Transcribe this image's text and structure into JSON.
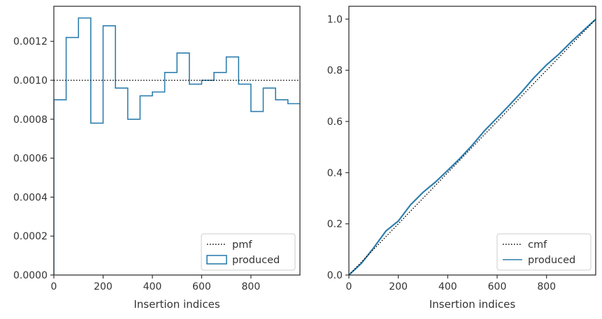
{
  "chart_data": [
    {
      "type": "histogram-step",
      "xlabel": "Insertion indices",
      "ylabel": "",
      "xlim": [
        0,
        999
      ],
      "ylim": [
        0,
        0.00138
      ],
      "x_ticks": [
        0,
        200,
        400,
        600,
        800
      ],
      "x_tick_labels": [
        "0",
        "200",
        "400",
        "600",
        "800"
      ],
      "y_ticks": [
        0,
        0.0002,
        0.0004,
        0.0006,
        0.0008,
        0.001,
        0.0012
      ],
      "y_tick_labels": [
        "0.0000",
        "0.0002",
        "0.0004",
        "0.0006",
        "0.0008",
        "0.0010",
        "0.0012"
      ],
      "bin_edges": [
        0,
        50,
        100,
        150,
        200,
        250,
        300,
        350,
        400,
        450,
        500,
        550,
        600,
        650,
        700,
        750,
        800,
        850,
        900,
        950,
        1000
      ],
      "series": [
        {
          "name": "produced",
          "style": "step",
          "color": "#2f7fae",
          "values": [
            0.0009,
            0.00122,
            0.00132,
            0.00078,
            0.00128,
            0.00096,
            0.0008,
            0.00092,
            0.00094,
            0.00104,
            0.00114,
            0.00098,
            0.001,
            0.00104,
            0.00112,
            0.00098,
            0.00084,
            0.00096,
            0.0009,
            0.00088
          ]
        },
        {
          "name": "pmf",
          "style": "dotted",
          "color": "#000000",
          "value": 0.001
        }
      ],
      "legend": {
        "placement": "lower-right",
        "entries": [
          "pmf",
          "produced"
        ]
      },
      "grid": false
    },
    {
      "type": "line",
      "xlabel": "Insertion indices",
      "ylabel": "",
      "xlim": [
        0,
        999
      ],
      "ylim": [
        0,
        1.05
      ],
      "x_ticks": [
        0,
        200,
        400,
        600,
        800
      ],
      "x_tick_labels": [
        "0",
        "200",
        "400",
        "600",
        "800"
      ],
      "y_ticks": [
        0,
        0.2,
        0.4,
        0.6,
        0.8,
        1.0
      ],
      "y_tick_labels": [
        "0.0",
        "0.2",
        "0.4",
        "0.6",
        "0.8",
        "1.0"
      ],
      "series": [
        {
          "name": "produced",
          "style": "solid",
          "color": "#2f7fae",
          "x": [
            0,
            50,
            100,
            150,
            200,
            250,
            300,
            350,
            400,
            450,
            500,
            550,
            600,
            650,
            700,
            750,
            800,
            850,
            900,
            950,
            1000
          ],
          "y": [
            0,
            0.045,
            0.106,
            0.172,
            0.211,
            0.275,
            0.323,
            0.363,
            0.409,
            0.456,
            0.508,
            0.565,
            0.614,
            0.664,
            0.716,
            0.772,
            0.821,
            0.863,
            0.911,
            0.956,
            1.0
          ]
        },
        {
          "name": "cmf",
          "style": "dotted",
          "color": "#000000",
          "x": [
            0,
            1000
          ],
          "y": [
            0,
            1.0
          ]
        }
      ],
      "legend": {
        "placement": "lower-right",
        "entries": [
          "cmf",
          "produced"
        ]
      },
      "grid": false
    }
  ]
}
